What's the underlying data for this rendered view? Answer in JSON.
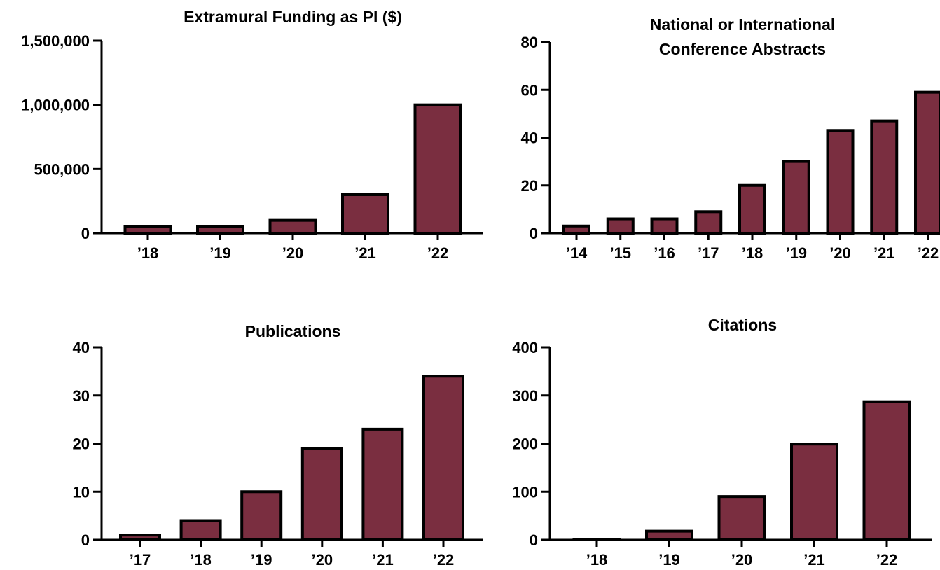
{
  "colors": {
    "bar_fill": "#7a2e40",
    "bar_stroke": "#000000",
    "axis": "#000000",
    "text": "#000000"
  },
  "chart_data": [
    {
      "type": "bar",
      "title": [
        "Extramural Funding as PI ($)"
      ],
      "categories": [
        "’18",
        "’19",
        "’20",
        "’21",
        "’22"
      ],
      "values": [
        50000,
        50000,
        100000,
        300000,
        1000000
      ],
      "ylim": [
        0,
        1500000
      ],
      "yticks": [
        0,
        500000,
        1000000,
        1500000
      ],
      "ytick_labels": [
        "0",
        "500,000",
        "1,000,000",
        "1,500,000"
      ],
      "xlabel": "",
      "ylabel": "",
      "grid": false,
      "legend": "none"
    },
    {
      "type": "bar",
      "title": [
        "National or International",
        "Conference Abstracts"
      ],
      "categories": [
        "’14",
        "’15",
        "’16",
        "’17",
        "’18",
        "’19",
        "’20",
        "’21",
        "’22"
      ],
      "values": [
        3,
        6,
        6,
        9,
        20,
        30,
        43,
        47,
        59
      ],
      "ylim": [
        0,
        80
      ],
      "yticks": [
        0,
        20,
        40,
        60,
        80
      ],
      "ytick_labels": [
        "0",
        "20",
        "40",
        "60",
        "80"
      ],
      "xlabel": "",
      "ylabel": "",
      "grid": false,
      "legend": "none"
    },
    {
      "type": "bar",
      "title": [
        "Publications"
      ],
      "categories": [
        "’17",
        "’18",
        "’19",
        "’20",
        "’21",
        "’22"
      ],
      "values": [
        1,
        4,
        10,
        19,
        23,
        34
      ],
      "ylim": [
        0,
        40
      ],
      "yticks": [
        0,
        10,
        20,
        30,
        40
      ],
      "ytick_labels": [
        "0",
        "10",
        "20",
        "30",
        "40"
      ],
      "xlabel": "",
      "ylabel": "",
      "grid": false,
      "legend": "none"
    },
    {
      "type": "bar",
      "title": [
        "Citations"
      ],
      "categories": [
        "’18",
        "’19",
        "’20",
        "’21",
        "’22"
      ],
      "values": [
        1,
        18,
        90,
        199,
        287
      ],
      "ylim": [
        0,
        400
      ],
      "yticks": [
        0,
        100,
        200,
        300,
        400
      ],
      "ytick_labels": [
        "0",
        "100",
        "200",
        "300",
        "400"
      ],
      "xlabel": "",
      "ylabel": "",
      "grid": false,
      "legend": "none"
    }
  ]
}
